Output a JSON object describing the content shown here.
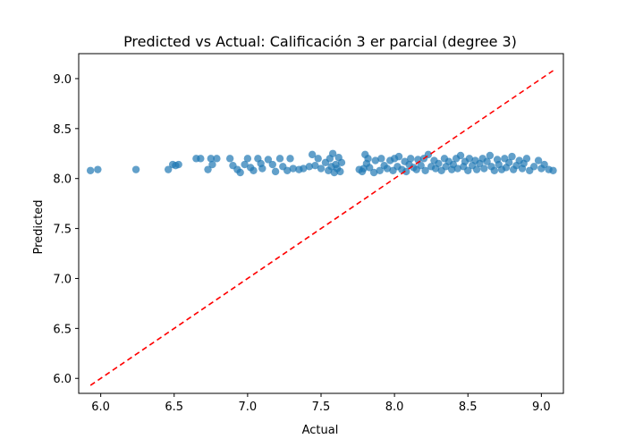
{
  "chart_data": {
    "type": "scatter",
    "title": "Predicted vs Actual: Calificación 3 er parcial (degree 3)",
    "xlabel": "Actual",
    "ylabel": "Predicted",
    "xlim": [
      5.85,
      9.15
    ],
    "ylim": [
      5.85,
      9.25
    ],
    "x_ticks": [
      6.0,
      6.5,
      7.0,
      7.5,
      8.0,
      8.5,
      9.0
    ],
    "x_tick_labels": [
      "6.0",
      "6.5",
      "7.0",
      "7.5",
      "8.0",
      "8.5",
      "9.0"
    ],
    "y_ticks": [
      6.0,
      6.5,
      7.0,
      7.5,
      8.0,
      8.5,
      9.0
    ],
    "y_tick_labels": [
      "6.0",
      "6.5",
      "7.0",
      "7.5",
      "8.0",
      "8.5",
      "9.0"
    ],
    "grid": false,
    "colors": {
      "points": "#1f77b4",
      "reference_line": "#ff0000"
    },
    "reference_line": {
      "style": "dashed",
      "x": [
        5.93,
        9.08
      ],
      "y": [
        5.93,
        9.08
      ]
    },
    "points": [
      [
        5.93,
        8.08
      ],
      [
        5.98,
        8.09
      ],
      [
        6.24,
        8.09
      ],
      [
        6.46,
        8.09
      ],
      [
        6.49,
        8.14
      ],
      [
        6.51,
        8.13
      ],
      [
        6.53,
        8.14
      ],
      [
        6.65,
        8.2
      ],
      [
        6.68,
        8.2
      ],
      [
        6.73,
        8.09
      ],
      [
        6.75,
        8.2
      ],
      [
        6.76,
        8.14
      ],
      [
        6.79,
        8.2
      ],
      [
        6.88,
        8.2
      ],
      [
        6.9,
        8.13
      ],
      [
        6.93,
        8.09
      ],
      [
        6.95,
        8.06
      ],
      [
        6.98,
        8.14
      ],
      [
        7.0,
        8.2
      ],
      [
        7.02,
        8.11
      ],
      [
        7.04,
        8.08
      ],
      [
        7.07,
        8.2
      ],
      [
        7.09,
        8.15
      ],
      [
        7.1,
        8.1
      ],
      [
        7.14,
        8.19
      ],
      [
        7.17,
        8.14
      ],
      [
        7.19,
        8.07
      ],
      [
        7.22,
        8.2
      ],
      [
        7.24,
        8.12
      ],
      [
        7.27,
        8.08
      ],
      [
        7.29,
        8.2
      ],
      [
        7.31,
        8.1
      ],
      [
        7.35,
        8.09
      ],
      [
        7.38,
        8.1
      ],
      [
        7.42,
        8.12
      ],
      [
        7.44,
        8.24
      ],
      [
        7.46,
        8.13
      ],
      [
        7.48,
        8.2
      ],
      [
        7.5,
        8.1
      ],
      [
        7.53,
        8.16
      ],
      [
        7.55,
        8.08
      ],
      [
        7.56,
        8.2
      ],
      [
        7.57,
        8.12
      ],
      [
        7.58,
        8.25
      ],
      [
        7.59,
        8.06
      ],
      [
        7.6,
        8.14
      ],
      [
        7.61,
        8.1
      ],
      [
        7.62,
        8.21
      ],
      [
        7.63,
        8.07
      ],
      [
        7.64,
        8.16
      ],
      [
        7.76,
        8.09
      ],
      [
        7.78,
        8.07
      ],
      [
        7.79,
        8.1
      ],
      [
        7.8,
        8.24
      ],
      [
        7.81,
        8.15
      ],
      [
        7.82,
        8.2
      ],
      [
        7.83,
        8.11
      ],
      [
        7.86,
        8.06
      ],
      [
        7.87,
        8.18
      ],
      [
        7.9,
        8.08
      ],
      [
        7.91,
        8.2
      ],
      [
        7.93,
        8.13
      ],
      [
        7.95,
        8.1
      ],
      [
        7.97,
        8.18
      ],
      [
        7.99,
        8.08
      ],
      [
        8.0,
        8.2
      ],
      [
        8.02,
        8.12
      ],
      [
        8.03,
        8.22
      ],
      [
        8.05,
        8.09
      ],
      [
        8.07,
        8.17
      ],
      [
        8.08,
        8.07
      ],
      [
        8.1,
        8.14
      ],
      [
        8.11,
        8.2
      ],
      [
        8.13,
        8.11
      ],
      [
        8.15,
        8.09
      ],
      [
        8.16,
        8.19
      ],
      [
        8.18,
        8.13
      ],
      [
        8.2,
        8.2
      ],
      [
        8.21,
        8.08
      ],
      [
        8.23,
        8.24
      ],
      [
        8.25,
        8.12
      ],
      [
        8.27,
        8.18
      ],
      [
        8.28,
        8.1
      ],
      [
        8.3,
        8.15
      ],
      [
        8.32,
        8.08
      ],
      [
        8.34,
        8.2
      ],
      [
        8.35,
        8.12
      ],
      [
        8.37,
        8.17
      ],
      [
        8.39,
        8.09
      ],
      [
        8.4,
        8.14
      ],
      [
        8.42,
        8.2
      ],
      [
        8.43,
        8.1
      ],
      [
        8.45,
        8.23
      ],
      [
        8.47,
        8.12
      ],
      [
        8.48,
        8.17
      ],
      [
        8.5,
        8.08
      ],
      [
        8.51,
        8.2
      ],
      [
        8.53,
        8.13
      ],
      [
        8.55,
        8.18
      ],
      [
        8.56,
        8.09
      ],
      [
        8.58,
        8.15
      ],
      [
        8.6,
        8.2
      ],
      [
        8.61,
        8.1
      ],
      [
        8.63,
        8.17
      ],
      [
        8.65,
        8.23
      ],
      [
        8.66,
        8.12
      ],
      [
        8.68,
        8.08
      ],
      [
        8.7,
        8.19
      ],
      [
        8.71,
        8.14
      ],
      [
        8.73,
        8.09
      ],
      [
        8.75,
        8.2
      ],
      [
        8.76,
        8.11
      ],
      [
        8.78,
        8.16
      ],
      [
        8.8,
        8.22
      ],
      [
        8.81,
        8.09
      ],
      [
        8.83,
        8.13
      ],
      [
        8.85,
        8.18
      ],
      [
        8.87,
        8.1
      ],
      [
        8.88,
        8.15
      ],
      [
        8.9,
        8.2
      ],
      [
        8.92,
        8.08
      ],
      [
        8.95,
        8.12
      ],
      [
        8.98,
        8.18
      ],
      [
        9.0,
        8.1
      ],
      [
        9.02,
        8.14
      ],
      [
        9.05,
        8.09
      ],
      [
        9.08,
        8.08
      ]
    ]
  }
}
